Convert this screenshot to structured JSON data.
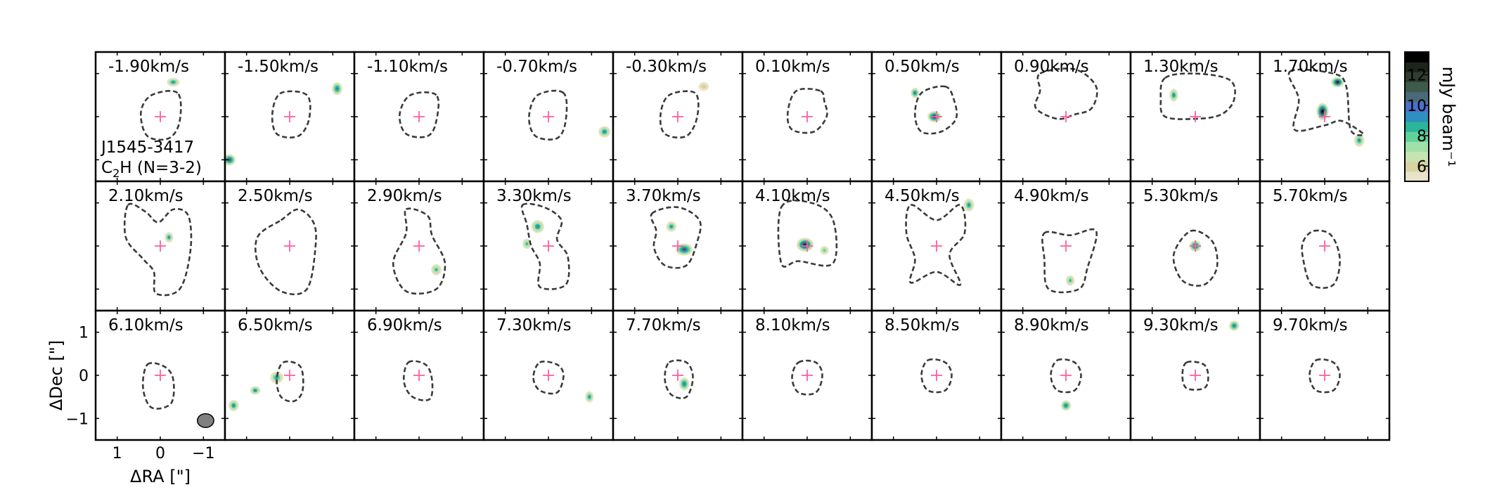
{
  "chart_data": {
    "type": "heatmap",
    "source_label": "J1545-3417",
    "line_label_pre": "C",
    "line_label_sub": "2",
    "line_label_post": "H (N=3-2)",
    "velocity_unit": "km/s",
    "channels": [
      {
        "v": "-1.90",
        "contour": [
          [
            -0.4,
            0.55
          ],
          [
            0.2,
            0.5
          ],
          [
            0.45,
            0.1
          ],
          [
            0.3,
            -0.45
          ],
          [
            -0.2,
            -0.5
          ],
          [
            -0.45,
            -0.1
          ]
        ],
        "blobs": [
          [
            -0.3,
            0.8,
            0.15,
            0.1,
            9
          ]
        ]
      },
      {
        "v": "-1.50",
        "contour": [
          [
            -0.4,
            0.5
          ],
          [
            0.2,
            0.55
          ],
          [
            0.4,
            0.1
          ],
          [
            0.3,
            -0.4
          ],
          [
            -0.2,
            -0.45
          ],
          [
            -0.45,
            -0.05
          ]
        ],
        "blobs": [
          [
            -1.1,
            0.65,
            0.12,
            0.15,
            10
          ],
          [
            1.4,
            -1.0,
            0.15,
            0.13,
            11
          ]
        ]
      },
      {
        "v": "-1.10",
        "contour": [
          [
            -0.4,
            0.5
          ],
          [
            0.2,
            0.5
          ],
          [
            0.45,
            0.05
          ],
          [
            0.3,
            -0.4
          ],
          [
            -0.2,
            -0.45
          ],
          [
            -0.4,
            -0.1
          ]
        ],
        "blobs": []
      },
      {
        "v": "-0.70",
        "contour": [
          [
            -0.35,
            0.55
          ],
          [
            0.25,
            0.5
          ],
          [
            0.45,
            0.0
          ],
          [
            0.3,
            -0.45
          ],
          [
            -0.2,
            -0.5
          ],
          [
            -0.4,
            -0.1
          ]
        ],
        "blobs": [
          [
            -1.3,
            -0.35,
            0.14,
            0.13,
            9.5
          ]
        ]
      },
      {
        "v": "-0.30",
        "contour": [
          [
            -0.4,
            0.55
          ],
          [
            0.2,
            0.5
          ],
          [
            0.4,
            0.05
          ],
          [
            0.3,
            -0.4
          ],
          [
            -0.2,
            -0.45
          ],
          [
            -0.45,
            0.0
          ]
        ],
        "blobs": [
          [
            -0.6,
            0.7,
            0.12,
            0.1,
            6
          ]
        ]
      },
      {
        "v": "0.10",
        "contour": [
          [
            -0.3,
            0.6
          ],
          [
            0.25,
            0.6
          ],
          [
            0.45,
            0.1
          ],
          [
            0.35,
            -0.3
          ],
          [
            -0.15,
            -0.35
          ],
          [
            -0.45,
            0.0
          ],
          [
            -0.4,
            0.35
          ]
        ],
        "blobs": []
      },
      {
        "v": "0.50",
        "contour": [
          [
            -0.2,
            0.7
          ],
          [
            0.35,
            0.55
          ],
          [
            0.5,
            0.05
          ],
          [
            0.35,
            -0.35
          ],
          [
            -0.1,
            -0.35
          ],
          [
            -0.45,
            -0.05
          ],
          [
            -0.4,
            0.4
          ]
        ],
        "blobs": [
          [
            0.05,
            0.0,
            0.16,
            0.13,
            12
          ],
          [
            0.5,
            0.55,
            0.1,
            0.12,
            10
          ]
        ]
      },
      {
        "v": "0.90",
        "contour": [
          [
            0.6,
            1.0
          ],
          [
            -0.2,
            1.1
          ],
          [
            -0.7,
            0.7
          ],
          [
            -0.6,
            0.2
          ],
          [
            -0.2,
            0.05
          ],
          [
            0.2,
            -0.05
          ],
          [
            0.7,
            0.2
          ],
          [
            0.6,
            0.6
          ]
        ],
        "blobs": []
      },
      {
        "v": "1.30",
        "contour": [
          [
            0.7,
            0.9
          ],
          [
            0.0,
            1.0
          ],
          [
            -0.8,
            0.85
          ],
          [
            -0.9,
            0.4
          ],
          [
            -0.6,
            0.05
          ],
          [
            0.0,
            -0.05
          ],
          [
            0.7,
            0.0
          ],
          [
            0.8,
            0.4
          ]
        ],
        "blobs": [
          [
            0.5,
            0.5,
            0.1,
            0.15,
            9.5
          ]
        ]
      },
      {
        "v": "1.70",
        "contour": [
          [
            0.8,
            1.05
          ],
          [
            -0.2,
            1.0
          ],
          [
            -0.5,
            0.7
          ],
          [
            -0.6,
            -0.3
          ],
          [
            -0.9,
            -0.4
          ],
          [
            -0.4,
            -0.1
          ],
          [
            0.0,
            -0.2
          ],
          [
            0.7,
            -0.3
          ],
          [
            0.6,
            0.4
          ]
        ],
        "blobs": [
          [
            -0.3,
            0.8,
            0.15,
            0.12,
            12.5
          ],
          [
            0.05,
            0.12,
            0.14,
            0.2,
            13
          ],
          [
            -0.8,
            -0.55,
            0.12,
            0.15,
            9
          ]
        ]
      },
      {
        "v": "2.10",
        "contour": [
          [
            0.75,
            0.95
          ],
          [
            0.35,
            0.8
          ],
          [
            0.05,
            0.55
          ],
          [
            -0.3,
            0.85
          ],
          [
            -0.65,
            0.7
          ],
          [
            -0.7,
            -0.1
          ],
          [
            -0.45,
            -1.0
          ],
          [
            0.1,
            -1.1
          ],
          [
            0.15,
            -0.6
          ],
          [
            0.4,
            -0.3
          ],
          [
            0.8,
            0.2
          ]
        ],
        "blobs": [
          [
            -0.2,
            0.2,
            0.1,
            0.12,
            9
          ]
        ]
      },
      {
        "v": "2.50",
        "contour": [
          [
            0.2,
            0.6
          ],
          [
            -0.2,
            0.85
          ],
          [
            -0.55,
            0.55
          ],
          [
            -0.6,
            0.0
          ],
          [
            -0.4,
            -1.0
          ],
          [
            0.2,
            -1.05
          ],
          [
            0.7,
            -0.5
          ],
          [
            0.75,
            0.2
          ]
        ],
        "blobs": []
      },
      {
        "v": "2.90",
        "contour": [
          [
            0.3,
            0.85
          ],
          [
            -0.2,
            0.7
          ],
          [
            -0.3,
            0.25
          ],
          [
            -0.6,
            -0.4
          ],
          [
            -0.4,
            -1.0
          ],
          [
            0.3,
            -1.05
          ],
          [
            0.6,
            -0.4
          ],
          [
            0.3,
            0.3
          ]
        ],
        "blobs": [
          [
            -0.4,
            -0.55,
            0.12,
            0.13,
            8.5
          ]
        ]
      },
      {
        "v": "3.30",
        "contour": [
          [
            0.6,
            0.95
          ],
          [
            0.1,
            0.9
          ],
          [
            -0.3,
            0.6
          ],
          [
            -0.2,
            0.15
          ],
          [
            -0.45,
            -0.25
          ],
          [
            -0.4,
            -0.9
          ],
          [
            0.2,
            -0.95
          ],
          [
            0.2,
            -0.4
          ],
          [
            0.4,
            0.0
          ],
          [
            0.5,
            0.5
          ]
        ],
        "blobs": [
          [
            0.25,
            0.45,
            0.15,
            0.15,
            9.5
          ],
          [
            0.5,
            0.05,
            0.1,
            0.12,
            8.5
          ]
        ]
      },
      {
        "v": "3.70",
        "contour": [
          [
            0.6,
            0.75
          ],
          [
            0.0,
            0.9
          ],
          [
            -0.5,
            0.6
          ],
          [
            -0.45,
            0.1
          ],
          [
            -0.2,
            -0.45
          ],
          [
            0.3,
            -0.45
          ],
          [
            0.55,
            -0.05
          ],
          [
            0.5,
            0.35
          ]
        ],
        "blobs": [
          [
            -0.15,
            -0.08,
            0.2,
            0.14,
            11
          ],
          [
            0.15,
            0.45,
            0.12,
            0.12,
            9
          ]
        ]
      },
      {
        "v": "4.10",
        "contour": [
          [
            0.6,
            0.9
          ],
          [
            -0.1,
            1.0
          ],
          [
            -0.6,
            0.6
          ],
          [
            -0.6,
            -0.4
          ],
          [
            0.2,
            -0.35
          ],
          [
            0.6,
            -0.4
          ]
        ],
        "blobs": [
          [
            0.05,
            0.03,
            0.2,
            0.16,
            12.5
          ],
          [
            -0.4,
            -0.1,
            0.1,
            0.1,
            8
          ]
        ]
      },
      {
        "v": "4.50",
        "contour": [
          [
            0.6,
            0.95
          ],
          [
            0.0,
            0.6
          ],
          [
            -0.55,
            0.95
          ],
          [
            -0.65,
            0.3
          ],
          [
            -0.3,
            -0.2
          ],
          [
            -0.55,
            -0.9
          ],
          [
            0.0,
            -0.6
          ],
          [
            0.6,
            -0.85
          ],
          [
            0.5,
            -0.3
          ],
          [
            0.7,
            0.3
          ]
        ],
        "blobs": [
          [
            -0.75,
            0.95,
            0.12,
            0.15,
            9
          ]
        ]
      },
      {
        "v": "4.90",
        "contour": [
          [
            0.5,
            0.3
          ],
          [
            -0.1,
            0.25
          ],
          [
            -0.7,
            0.35
          ],
          [
            -0.5,
            -0.5
          ],
          [
            -0.3,
            -1.0
          ],
          [
            0.4,
            -1.0
          ],
          [
            0.5,
            -0.3
          ]
        ],
        "blobs": [
          [
            -0.1,
            -0.8,
            0.1,
            0.12,
            8.5
          ]
        ]
      },
      {
        "v": "5.30",
        "contour": [
          [
            0.1,
            0.35
          ],
          [
            -0.4,
            0.1
          ],
          [
            -0.5,
            -0.5
          ],
          [
            -0.2,
            -0.9
          ],
          [
            0.3,
            -0.8
          ],
          [
            0.5,
            -0.2
          ]
        ],
        "blobs": [
          [
            0.0,
            0.0,
            0.14,
            0.13,
            11
          ]
        ]
      },
      {
        "v": "5.70",
        "contour": [
          [
            0.25,
            0.35
          ],
          [
            -0.15,
            0.25
          ],
          [
            -0.35,
            -0.3
          ],
          [
            -0.2,
            -0.9
          ],
          [
            0.3,
            -0.9
          ],
          [
            0.5,
            -0.3
          ],
          [
            0.5,
            0.1
          ]
        ],
        "blobs": []
      },
      {
        "v": "6.10",
        "contour": [
          [
            0.3,
            0.25
          ],
          [
            -0.1,
            0.2
          ],
          [
            -0.3,
            -0.1
          ],
          [
            -0.25,
            -0.65
          ],
          [
            0.2,
            -0.75
          ],
          [
            0.4,
            -0.3
          ]
        ],
        "blobs": []
      },
      {
        "v": "6.50",
        "contour": [
          [
            0.15,
            0.3
          ],
          [
            -0.25,
            0.2
          ],
          [
            -0.3,
            -0.35
          ],
          [
            -0.1,
            -0.6
          ],
          [
            0.2,
            -0.5
          ],
          [
            0.3,
            -0.1
          ]
        ],
        "blobs": [
          [
            0.3,
            -0.05,
            0.15,
            0.14,
            9
          ],
          [
            0.8,
            -0.35,
            0.12,
            0.1,
            9.5
          ],
          [
            1.3,
            -0.7,
            0.12,
            0.13,
            9.5
          ]
        ]
      },
      {
        "v": "6.90",
        "contour": [
          [
            0.25,
            0.3
          ],
          [
            -0.15,
            0.25
          ],
          [
            -0.3,
            -0.1
          ],
          [
            -0.25,
            -0.55
          ],
          [
            0.15,
            -0.5
          ],
          [
            0.35,
            -0.15
          ]
        ],
        "blobs": []
      },
      {
        "v": "7.30",
        "contour": [
          [
            0.2,
            0.3
          ],
          [
            -0.2,
            0.25
          ],
          [
            -0.35,
            0.0
          ],
          [
            -0.2,
            -0.4
          ],
          [
            0.2,
            -0.35
          ],
          [
            0.35,
            -0.05
          ]
        ],
        "blobs": [
          [
            -0.95,
            -0.5,
            0.1,
            0.13,
            9
          ]
        ]
      },
      {
        "v": "7.70",
        "contour": [
          [
            0.2,
            0.3
          ],
          [
            -0.2,
            0.3
          ],
          [
            -0.35,
            -0.05
          ],
          [
            -0.2,
            -0.5
          ],
          [
            0.15,
            -0.45
          ],
          [
            0.3,
            -0.1
          ]
        ],
        "blobs": [
          [
            -0.15,
            -0.2,
            0.12,
            0.15,
            10
          ]
        ]
      },
      {
        "v": "8.10",
        "contour": [
          [
            0.2,
            0.3
          ],
          [
            -0.2,
            0.3
          ],
          [
            -0.35,
            0.0
          ],
          [
            -0.2,
            -0.4
          ],
          [
            0.2,
            -0.4
          ],
          [
            0.35,
            -0.05
          ]
        ],
        "blobs": []
      },
      {
        "v": "8.50",
        "contour": [
          [
            0.2,
            0.35
          ],
          [
            -0.2,
            0.3
          ],
          [
            -0.35,
            0.0
          ],
          [
            -0.2,
            -0.35
          ],
          [
            0.2,
            -0.35
          ],
          [
            0.35,
            0.0
          ]
        ],
        "blobs": []
      },
      {
        "v": "8.90",
        "contour": [
          [
            0.2,
            0.35
          ],
          [
            -0.2,
            0.3
          ],
          [
            -0.35,
            0.0
          ],
          [
            -0.2,
            -0.35
          ],
          [
            0.2,
            -0.35
          ],
          [
            0.35,
            0.0
          ]
        ],
        "blobs": [
          [
            0.0,
            -0.7,
            0.12,
            0.12,
            10
          ]
        ]
      },
      {
        "v": "9.30",
        "contour": [
          [
            0.2,
            0.3
          ],
          [
            -0.2,
            0.25
          ],
          [
            -0.3,
            -0.05
          ],
          [
            -0.2,
            -0.3
          ],
          [
            0.2,
            -0.3
          ],
          [
            0.3,
            0.0
          ]
        ],
        "blobs": [
          [
            -0.9,
            1.15,
            0.12,
            0.12,
            10
          ]
        ]
      },
      {
        "v": "9.70",
        "contour": [
          [
            0.2,
            0.35
          ],
          [
            -0.2,
            0.3
          ],
          [
            -0.35,
            0.0
          ],
          [
            -0.2,
            -0.35
          ],
          [
            0.2,
            -0.35
          ],
          [
            0.35,
            0.0
          ]
        ],
        "blobs": []
      }
    ],
    "xlabel": "ΔRA [\"]",
    "ylabel": "ΔDec [\"]",
    "xlim": [
      1.5,
      -1.5
    ],
    "ylim": [
      -1.5,
      1.5
    ],
    "xticks": [
      1,
      0,
      -1
    ],
    "xtick_labels": [
      "1",
      "0",
      "−1"
    ],
    "yticks": [
      1,
      0,
      -1
    ],
    "ytick_labels": [
      "1",
      "0",
      "−1"
    ],
    "colorbar": {
      "label": "mJy beam⁻¹",
      "range": [
        5,
        13.5
      ],
      "ticks": [
        6,
        8,
        10,
        12
      ],
      "tick_labels": [
        "6",
        "8",
        "10",
        "12"
      ],
      "colors": [
        "#e8e2c8",
        "#d8d3a2",
        "#c6e3b0",
        "#9fe0a8",
        "#5fd49a",
        "#2bb59a",
        "#2e8fc0",
        "#4c6fc8",
        "#4a6a7a",
        "#3e5a4a",
        "#303e30",
        "#1c241c",
        "#000000"
      ]
    },
    "marker": {
      "x": 0,
      "y": 0,
      "color": "#ff5fa2"
    },
    "contour_color": "#3a3a3a",
    "beam": {
      "x": -1.05,
      "y": -1.05,
      "major": 0.38,
      "minor": 0.32,
      "color": "#808080"
    }
  }
}
